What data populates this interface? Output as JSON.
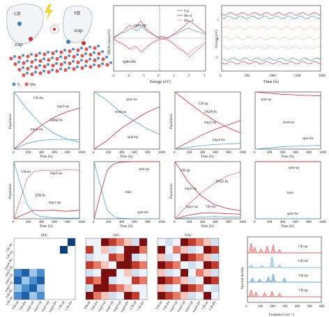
{
  "colors": {
    "red": "#d9262d",
    "blue": "#2f7fc8",
    "lightblue": "#4ba3db",
    "pink": "#f08a8a",
    "grey": "#9aa0a6",
    "orange": "#f2a46a",
    "mo": "#e0554f",
    "s": "#4d8fd0"
  },
  "schematic": {
    "cb": "CB",
    "vb": "VB",
    "trap_top": "trap",
    "trap_bottom": "trap",
    "s_label": "S",
    "mo_label": "Mo",
    "e_symbol": "e",
    "h_symbol": "h"
  },
  "chart_data": [
    {
      "id": "pdos",
      "type": "line",
      "ylabel": "PDOS (states/eV)",
      "xlabel": "Energy (eV)",
      "xlim": [
        -3,
        3
      ],
      "x_ticks": [
        "-3",
        "-2",
        "-1",
        "0",
        "1",
        "2",
        "3"
      ],
      "annotations": [
        "spin-up",
        "spin-dw"
      ],
      "series": [
        {
          "name": "S-p"
        },
        {
          "name": "Mo-d"
        },
        {
          "name": "Mo",
          "sub": "S",
          "suffix": "-d"
        }
      ]
    },
    {
      "id": "energy",
      "type": "line",
      "ylabel": "Energy (eV)",
      "xlabel": "Time (fs)",
      "xlim": [
        0,
        2000
      ],
      "x_ticks": [
        "0",
        "500",
        "1000",
        "1500",
        "2000"
      ],
      "y_ticks": [
        "-1",
        "0",
        "1"
      ]
    },
    {
      "id": "e1",
      "type": "line",
      "ylabel": "Population",
      "xlabel": "Time (fs)",
      "xlim": [
        0,
        1000
      ],
      "ylim": [
        0,
        1
      ],
      "x_ticks": [
        "0",
        "200",
        "400",
        "600",
        "800",
        "1000"
      ],
      "labels": [
        "CB-dw",
        "trap3-up",
        "trap4-dw"
      ],
      "time": "2402 fs",
      "series": [
        {
          "name": "CB-dw",
          "x": [
            0,
            200,
            400,
            600,
            800,
            1000
          ],
          "values": [
            1.0,
            0.7,
            0.45,
            0.28,
            0.18,
            0.12
          ]
        },
        {
          "name": "trap3-up",
          "x": [
            0,
            200,
            400,
            600,
            800,
            1000
          ],
          "values": [
            0,
            0.2,
            0.4,
            0.55,
            0.65,
            0.72
          ]
        },
        {
          "name": "trap4-dw",
          "x": [
            0,
            200,
            400,
            600,
            800,
            1000
          ],
          "values": [
            0,
            0.1,
            0.15,
            0.17,
            0.17,
            0.16
          ]
        }
      ]
    },
    {
      "id": "e2",
      "type": "line",
      "ylabel": "",
      "xlabel": "Time (fs)",
      "xlim": [
        0,
        1000
      ],
      "x_ticks": [
        "0",
        "200",
        "400",
        "600",
        "800",
        "1000"
      ],
      "labels": [
        "electron",
        "spin-dw",
        "spin-up"
      ],
      "series": [
        {
          "name": "spin-dw",
          "x": [
            0,
            200,
            400,
            600,
            800,
            1000
          ],
          "values": [
            1.0,
            0.85,
            0.65,
            0.5,
            0.36,
            0.26
          ]
        },
        {
          "name": "spin-up",
          "x": [
            0,
            200,
            400,
            600,
            800,
            1000
          ],
          "values": [
            0,
            0.15,
            0.35,
            0.5,
            0.64,
            0.74
          ]
        }
      ]
    },
    {
      "id": "e3",
      "type": "line",
      "ylabel": "Population",
      "xlabel": "Time (fs)",
      "xlim": [
        0,
        1000
      ],
      "x_ticks": [
        "0",
        "200",
        "400",
        "600",
        "800",
        "1000"
      ],
      "labels": [
        "CB-up",
        "trap3-up",
        "trap4-dw"
      ],
      "time": "1424 fs",
      "series": [
        {
          "name": "CB-up",
          "x": [
            0,
            200,
            400,
            600,
            800,
            1000
          ],
          "values": [
            1.0,
            0.82,
            0.65,
            0.5,
            0.38,
            0.28
          ]
        },
        {
          "name": "trap3-up",
          "x": [
            0,
            200,
            400,
            600,
            800,
            1000
          ],
          "values": [
            0,
            0.12,
            0.24,
            0.34,
            0.42,
            0.5
          ]
        },
        {
          "name": "trap4-dw",
          "x": [
            0,
            200,
            400,
            600,
            800,
            1000
          ],
          "values": [
            0,
            0.03,
            0.06,
            0.08,
            0.09,
            0.1
          ]
        }
      ]
    },
    {
      "id": "e4",
      "type": "line",
      "ylabel": "",
      "xlabel": "Time (fs)",
      "xlim": [
        0,
        1000
      ],
      "x_ticks": [
        "0",
        "200",
        "400",
        "600",
        "800",
        "1000"
      ],
      "labels": [
        "spin-up",
        "electron",
        "spin-dw"
      ],
      "series": [
        {
          "name": "spin-up",
          "x": [
            0,
            200,
            400,
            600,
            800,
            1000
          ],
          "values": [
            1.0,
            0.98,
            0.96,
            0.95,
            0.94,
            0.93
          ]
        },
        {
          "name": "spin-dw",
          "x": [
            0,
            200,
            400,
            600,
            800,
            1000
          ],
          "values": [
            0,
            0.02,
            0.04,
            0.05,
            0.06,
            0.07
          ]
        }
      ]
    },
    {
      "id": "h1",
      "type": "line",
      "ylabel": "Population",
      "xlabel": "Time (fs)",
      "xlim": [
        0,
        1000
      ],
      "x_ticks": [
        "0",
        "200",
        "400",
        "600",
        "800",
        "1000"
      ],
      "labels": [
        "VB-dw",
        "trap2-up",
        "trap1-up"
      ],
      "time": "258 fs",
      "series": [
        {
          "name": "VB-dw",
          "x": [
            0,
            100,
            200,
            300,
            400,
            600,
            800,
            1000
          ],
          "values": [
            1.0,
            0.6,
            0.25,
            0.1,
            0.04,
            0.02,
            0.01,
            0.01
          ]
        },
        {
          "name": "trap2-up",
          "x": [
            0,
            100,
            200,
            300,
            400,
            600,
            800,
            1000
          ],
          "values": [
            0,
            0.35,
            0.7,
            0.82,
            0.85,
            0.84,
            0.86,
            0.85
          ]
        },
        {
          "name": "trap1-up",
          "x": [
            0,
            100,
            200,
            300,
            400,
            600,
            800,
            1000
          ],
          "values": [
            0,
            0.05,
            0.1,
            0.15,
            0.14,
            0.15,
            0.13,
            0.15
          ]
        }
      ]
    },
    {
      "id": "h2",
      "type": "line",
      "ylabel": "",
      "xlabel": "Time (fs)",
      "xlim": [
        0,
        1000
      ],
      "x_ticks": [
        "0",
        "200",
        "400",
        "600",
        "800",
        "1000"
      ],
      "labels": [
        "spin-up",
        "hole",
        "spin-dw"
      ],
      "series": [
        {
          "name": "spin-dw",
          "x": [
            0,
            100,
            200,
            300,
            400,
            600,
            800,
            1000
          ],
          "values": [
            1.0,
            0.55,
            0.15,
            0.04,
            0.01,
            0.0,
            0.0,
            0.0
          ]
        },
        {
          "name": "spin-up",
          "x": [
            0,
            100,
            200,
            300,
            400,
            600,
            800,
            1000
          ],
          "values": [
            0,
            0.45,
            0.85,
            0.96,
            0.99,
            1.0,
            1.0,
            1.0
          ]
        }
      ]
    },
    {
      "id": "h3",
      "type": "line",
      "ylabel": "Population",
      "xlabel": "Time (fs)",
      "xlim": [
        0,
        1000
      ],
      "x_ticks": [
        "0",
        "200",
        "400",
        "600",
        "800",
        "1000"
      ],
      "labels": [
        "VB-up",
        "trap2-up",
        "trap1-up",
        "VB-dw"
      ],
      "time": "1052 fs",
      "series": [
        {
          "name": "VB-up",
          "x": [
            0,
            200,
            400,
            600,
            800,
            1000
          ],
          "values": [
            1.0,
            0.65,
            0.4,
            0.25,
            0.18,
            0.14
          ]
        },
        {
          "name": "trap2-up",
          "x": [
            0,
            200,
            400,
            600,
            800,
            1000
          ],
          "values": [
            0,
            0.25,
            0.45,
            0.62,
            0.75,
            0.82
          ]
        },
        {
          "name": "trap1-up",
          "x": [
            0,
            200,
            400,
            600,
            800,
            1000
          ],
          "values": [
            0,
            0.06,
            0.1,
            0.1,
            0.09,
            0.08
          ]
        },
        {
          "name": "VB-dw",
          "x": [
            0,
            200,
            400,
            600,
            800,
            1000
          ],
          "values": [
            0,
            0.02,
            0.03,
            0.04,
            0.03,
            0.03
          ]
        }
      ]
    },
    {
      "id": "h4",
      "type": "line",
      "ylabel": "",
      "xlabel": "Time (fs)",
      "xlim": [
        0,
        1000
      ],
      "x_ticks": [
        "0",
        "200",
        "400",
        "600",
        "800",
        "1000"
      ],
      "labels": [
        "spin-up",
        "hole",
        "spin-dw"
      ],
      "series": [
        {
          "name": "spin-up",
          "x": [
            0,
            1000
          ],
          "values": [
            1.0,
            1.0
          ]
        },
        {
          "name": "spin-dw",
          "x": [
            0,
            1000
          ],
          "values": [
            0,
            0
          ]
        }
      ]
    },
    {
      "id": "heatmaps",
      "type": "heatmap",
      "panels": [
        "EPC",
        "SOC",
        "NAC"
      ],
      "rows": [
        "CB-dw",
        "CB-up",
        "trap4-dw",
        "trap3-up",
        "trap2-up",
        "trap1-up",
        "VB-dw",
        "VB-up"
      ],
      "cols": [
        "VB-up",
        "VB-dw",
        "trap1-up",
        "trap2-up",
        "trap3-up",
        "trap4-dw",
        "CB-up",
        "CB-dw"
      ]
    },
    {
      "id": "spectral",
      "type": "area",
      "ylabel": "Spectral density",
      "xlabel": "Frequence (cm⁻¹)",
      "xlim": [
        0,
        600
      ],
      "x_ticks": [
        "0",
        "100",
        "200",
        "300",
        "400",
        "500",
        "600"
      ],
      "series": [
        {
          "name": "CB-up"
        },
        {
          "name": "CB-dw"
        },
        {
          "name": "VB-dw"
        },
        {
          "name": "VB-up"
        }
      ]
    }
  ]
}
